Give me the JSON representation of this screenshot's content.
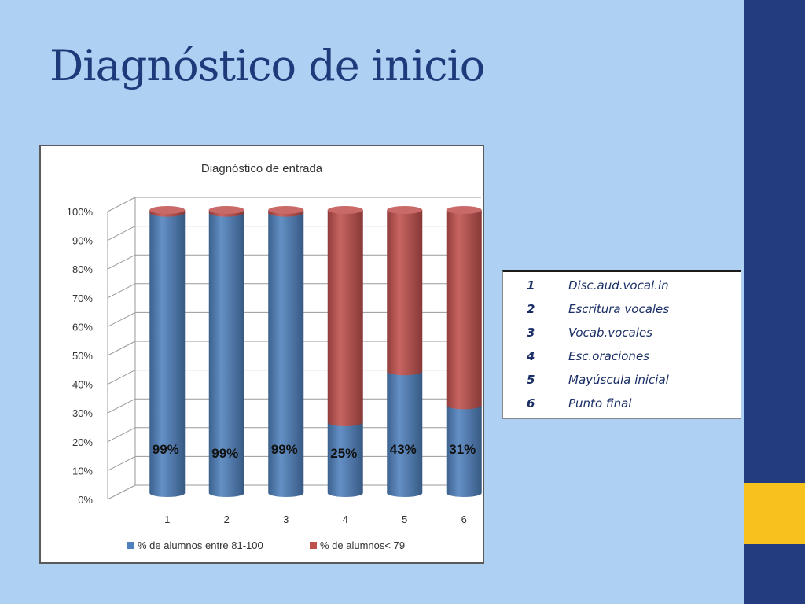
{
  "slide": {
    "title": "Diagnóstico de inicio",
    "colors": {
      "background": "#aed0f3",
      "sidebar": "#233b7f",
      "accent": "#f7c21d",
      "title": "#1f3a7a"
    }
  },
  "chart_data": {
    "type": "bar",
    "stacked": true,
    "three_d": true,
    "title": "Diagnóstico de entrada",
    "categories": [
      "1",
      "2",
      "3",
      "4",
      "5",
      "6"
    ],
    "series": [
      {
        "name": "% de alumnos entre 81-100",
        "values": [
          99,
          99,
          99,
          25,
          43,
          31
        ],
        "color": "#4f81bd"
      },
      {
        "name": "% de alumnos< 79",
        "values": [
          1,
          1,
          1,
          75,
          57,
          69
        ],
        "color": "#c0504d"
      }
    ],
    "data_labels": [
      "99%",
      "99%",
      "99%",
      "25%",
      "43%",
      "31%"
    ],
    "y_ticks": [
      "0%",
      "10%",
      "20%",
      "30%",
      "40%",
      "50%",
      "60%",
      "70%",
      "80%",
      "90%",
      "100%"
    ],
    "ylim": [
      0,
      100
    ],
    "grid": true,
    "legend_position": "bottom"
  },
  "legend_table": {
    "rows": [
      {
        "num": "1",
        "label": "Disc.aud.vocal.in"
      },
      {
        "num": "2",
        "label": "Escritura vocales"
      },
      {
        "num": "3",
        "label": "Vocab.vocales"
      },
      {
        "num": "4",
        "label": "Esc.oraciones"
      },
      {
        "num": "5",
        "label": "Mayúscula inicial"
      },
      {
        "num": "6",
        "label": "Punto final"
      }
    ]
  }
}
